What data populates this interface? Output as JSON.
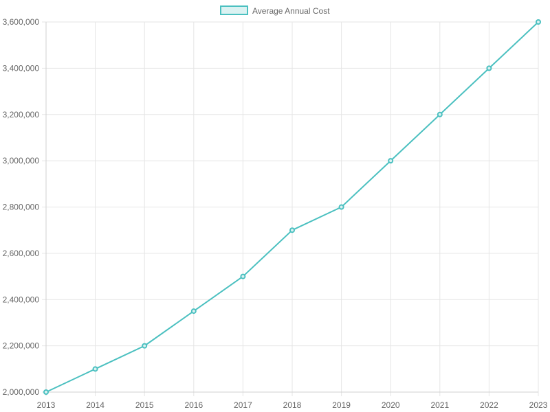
{
  "chart_data": {
    "type": "line",
    "title": "",
    "xlabel": "",
    "ylabel": "",
    "categories": [
      "2013",
      "2014",
      "2015",
      "2016",
      "2017",
      "2018",
      "2019",
      "2020",
      "2021",
      "2022",
      "2023"
    ],
    "series": [
      {
        "name": "Average Annual Cost",
        "values": [
          2000000,
          2100000,
          2200000,
          2350000,
          2500000,
          2700000,
          2800000,
          3000000,
          3200000,
          3400000,
          3600000
        ]
      }
    ],
    "ylim": [
      2000000,
      3600000
    ],
    "y_ticks": [
      "2,000,000",
      "2,200,000",
      "2,400,000",
      "2,600,000",
      "2,800,000",
      "3,000,000",
      "3,200,000",
      "3,400,000",
      "3,600,000"
    ],
    "y_tick_values": [
      2000000,
      2200000,
      2400000,
      2600000,
      2800000,
      3000000,
      3200000,
      3400000,
      3600000
    ],
    "grid": true,
    "legend_position": "top-center",
    "colors": {
      "line": "#4bc0c0",
      "fill": "#dbf2f2",
      "grid": "#e5e5e5",
      "axis": "#d0d0d0",
      "text": "#666666"
    }
  }
}
